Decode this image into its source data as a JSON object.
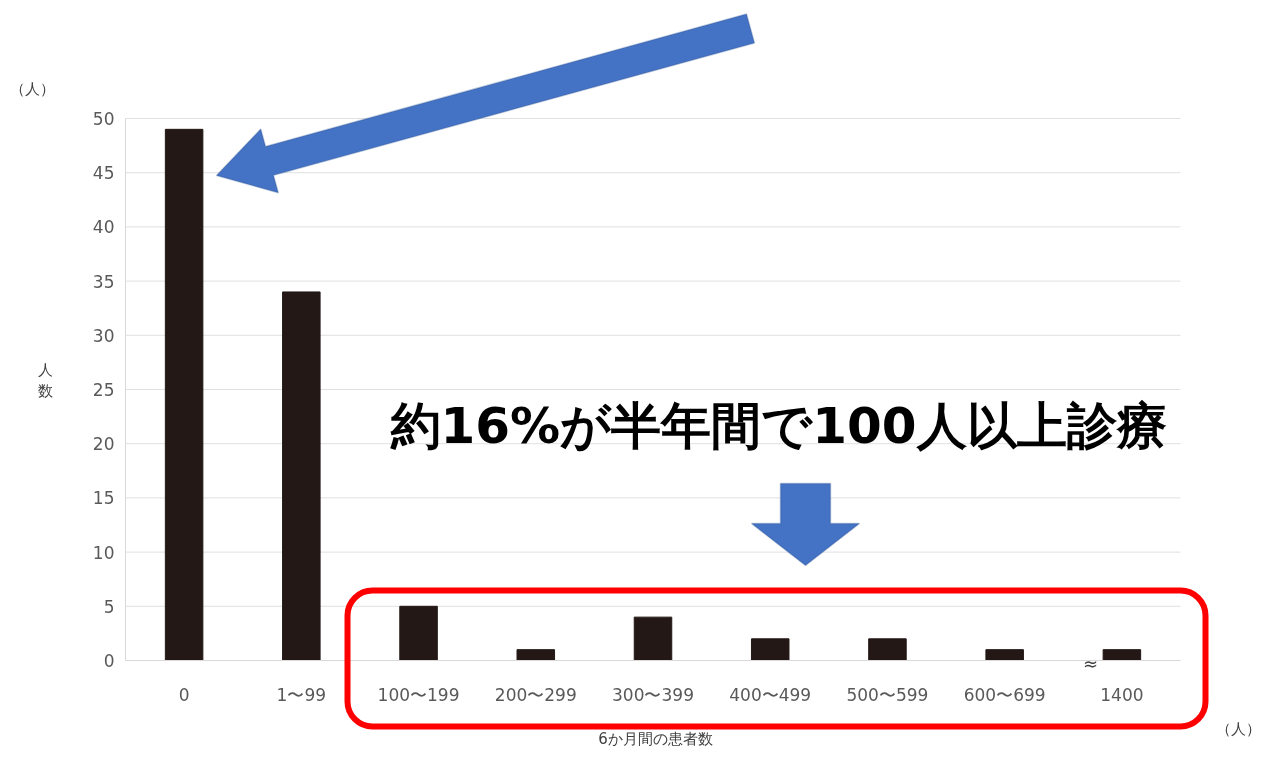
{
  "chart_data": {
    "type": "bar",
    "categories": [
      "0",
      "1〜99",
      "100〜199",
      "200〜299",
      "300〜399",
      "400〜499",
      "500〜599",
      "600〜699",
      "1400"
    ],
    "values": [
      49,
      34,
      5,
      1,
      4,
      2,
      2,
      1,
      1
    ],
    "color": "#231815",
    "xlabel": "6か月間の患者数",
    "ylabel": "人数",
    "ylim": [
      0,
      50
    ],
    "yticks": [
      0,
      5,
      10,
      15,
      20,
      25,
      30,
      35,
      40,
      45,
      50
    ],
    "grid": "y",
    "annotations": [
      "約16%が半年間で100人以上診療",
      "≈",
      "（人）",
      "（人）"
    ]
  }
}
